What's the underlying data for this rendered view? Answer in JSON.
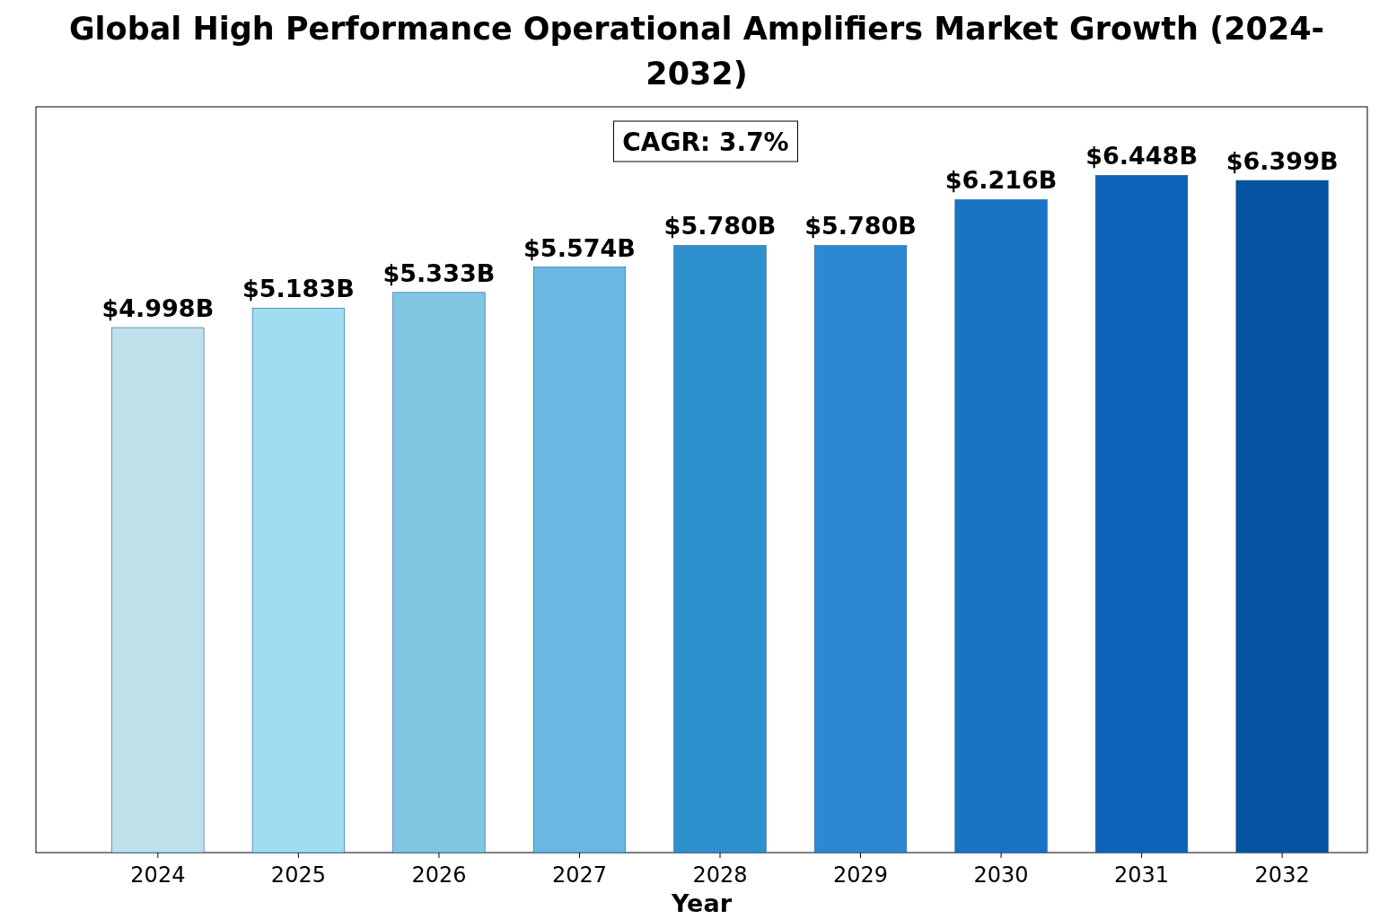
{
  "chart_data": {
    "type": "bar",
    "title": "Global High Performance Operational Amplifiers Market Growth (2024-2032)",
    "xlabel": "Year",
    "categories": [
      "2024",
      "2025",
      "2026",
      "2027",
      "2028",
      "2029",
      "2030",
      "2031",
      "2032"
    ],
    "values": [
      4.998,
      5.183,
      5.333,
      5.574,
      5.78,
      5.78,
      6.216,
      6.448,
      6.399
    ],
    "ylim": [
      0,
      7.1
    ],
    "value_labels": [
      "$4.998B",
      "$5.183B",
      "$5.333B",
      "$5.574B",
      "$5.780B",
      "$5.780B",
      "$6.216B",
      "$6.448B",
      "$6.399B"
    ],
    "colors": [
      "#bde0ea",
      "#a0dcf2",
      "#80c6e2",
      "#6ab8e2",
      "#2e90cc",
      "#2d88d4",
      "#1874c4",
      "#0e62b8",
      "#0452a0"
    ],
    "annotations": [
      "CAGR: 3.7%"
    ]
  }
}
